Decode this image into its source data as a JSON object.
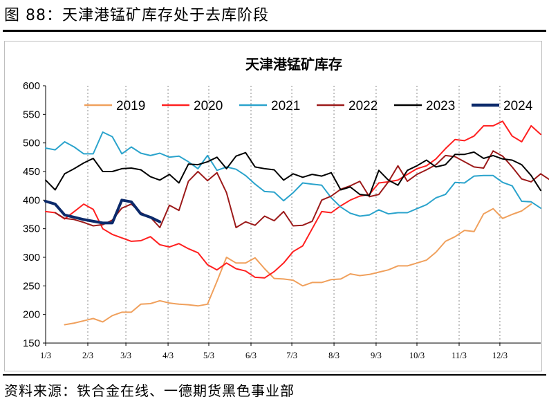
{
  "figure_title": "图 88：天津港锰矿库存处于去库阶段",
  "source_note": "资料来源：铁合金在线、一德期货黑色事业部",
  "chart_data": {
    "type": "line",
    "title": "天津港锰矿库存",
    "xlabel": "",
    "ylabel": "",
    "ylim": [
      150,
      600
    ],
    "yticks": [
      150,
      200,
      250,
      300,
      350,
      400,
      450,
      500,
      550,
      600
    ],
    "x_range": [
      1,
      53
    ],
    "xticks": [
      {
        "label": "1/3",
        "week": 1
      },
      {
        "label": "2/3",
        "week": 5.43
      },
      {
        "label": "3/3",
        "week": 9.43
      },
      {
        "label": "4/3",
        "week": 13.86
      },
      {
        "label": "5/3",
        "week": 18.14
      },
      {
        "label": "6/3",
        "week": 22.57
      },
      {
        "label": "7/3",
        "week": 26.86
      },
      {
        "label": "8/3",
        "week": 31.29
      },
      {
        "label": "9/3",
        "week": 35.71
      },
      {
        "label": "10/3",
        "week": 40
      },
      {
        "label": "11/3",
        "week": 44.43
      },
      {
        "label": "12/3",
        "week": 48.71
      }
    ],
    "gridlines": "vertical dashed at month ticks",
    "legend_position": "top",
    "series": [
      {
        "name": "2019",
        "color": "#f0a05c",
        "width": 2,
        "start_week": 3,
        "values": [
          182,
          185,
          189,
          193,
          187,
          198,
          204,
          204,
          218,
          219,
          224,
          220,
          218,
          217,
          215,
          218,
          258,
          300,
          290,
          290,
          299,
          280,
          263,
          262,
          260,
          250,
          256,
          256,
          261,
          262,
          271,
          268,
          270,
          274,
          278,
          285,
          285,
          290,
          295,
          309,
          328,
          336,
          347,
          345,
          376,
          385,
          368,
          375,
          381,
          393
        ]
      },
      {
        "name": "2020",
        "color": "#ff1f1f",
        "width": 2,
        "start_week": 1,
        "values": [
          380,
          378,
          367,
          380,
          393,
          384,
          350,
          340,
          334,
          328,
          329,
          336,
          322,
          318,
          324,
          315,
          308,
          287,
          278,
          290,
          280,
          276,
          265,
          264,
          275,
          290,
          310,
          320,
          350,
          380,
          378,
          390,
          400,
          407,
          410,
          430,
          432,
          435,
          445,
          455,
          460,
          472,
          490,
          506,
          504,
          512,
          530,
          530,
          538,
          512,
          502,
          530,
          515
        ]
      },
      {
        "name": "2021",
        "color": "#2aa3cc",
        "width": 2,
        "start_week": 1,
        "values": [
          491,
          488,
          502,
          493,
          481,
          481,
          519,
          511,
          481,
          493,
          482,
          478,
          482,
          475,
          477,
          467,
          455,
          478,
          452,
          458,
          454,
          443,
          428,
          415,
          414,
          399,
          413,
          430,
          428,
          426,
          404,
          388,
          377,
          372,
          374,
          383,
          376,
          378,
          378,
          385,
          392,
          404,
          410,
          431,
          430,
          442,
          443,
          443,
          431,
          425,
          398,
          397,
          386
        ]
      },
      {
        "name": "2022",
        "color": "#9c1a1a",
        "width": 2,
        "start_week": 2,
        "values": [
          378,
          368,
          366,
          361,
          355,
          357,
          365,
          386,
          393,
          378,
          370,
          352,
          391,
          382,
          433,
          450,
          434,
          448,
          413,
          352,
          362,
          356,
          372,
          364,
          380,
          355,
          356,
          363,
          400,
          407,
          419,
          425,
          433,
          406,
          410,
          432,
          460,
          433,
          445,
          453,
          462,
          478,
          476,
          467,
          458,
          456,
          486,
          477,
          458,
          437,
          432,
          446,
          435
        ]
      },
      {
        "name": "2023",
        "color": "#000000",
        "width": 2,
        "start_week": 1,
        "values": [
          435,
          418,
          446,
          455,
          465,
          473,
          450,
          450,
          455,
          456,
          453,
          441,
          435,
          445,
          430,
          463,
          462,
          467,
          475,
          455,
          477,
          483,
          458,
          455,
          453,
          435,
          446,
          440,
          445,
          442,
          448,
          418,
          423,
          410,
          408,
          452,
          435,
          426,
          452,
          460,
          470,
          458,
          462,
          480,
          480,
          484,
          473,
          478,
          472,
          470,
          462,
          443,
          417
        ]
      },
      {
        "name": "2024",
        "color": "#0c2a6b",
        "width": 4,
        "start_week": 1,
        "values": [
          398,
          393,
          374,
          370,
          366,
          363,
          360,
          360,
          400,
          397,
          376,
          370,
          362
        ]
      }
    ]
  }
}
